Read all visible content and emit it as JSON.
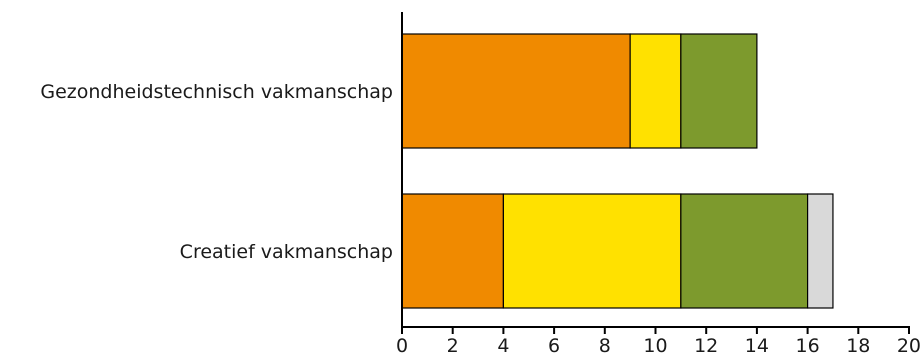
{
  "chart_data": {
    "type": "bar",
    "orientation": "horizontal",
    "stacked": true,
    "categories": [
      "Gezondheidstechnisch vakmanschap",
      "Creatief vakmanschap"
    ],
    "series": [
      {
        "color": "#f08a00",
        "values": [
          9,
          4
        ]
      },
      {
        "color": "#ffe100",
        "values": [
          2,
          7
        ]
      },
      {
        "color": "#7d9a2d",
        "values": [
          3,
          5
        ]
      },
      {
        "color": "#d9d9d9",
        "values": [
          0,
          1
        ]
      }
    ],
    "xlim": [
      0,
      20
    ],
    "xticks": [
      "0",
      "2",
      "4",
      "6",
      "8",
      "10",
      "12",
      "14",
      "16",
      "18",
      "20"
    ],
    "grid": false,
    "legend": "none"
  }
}
